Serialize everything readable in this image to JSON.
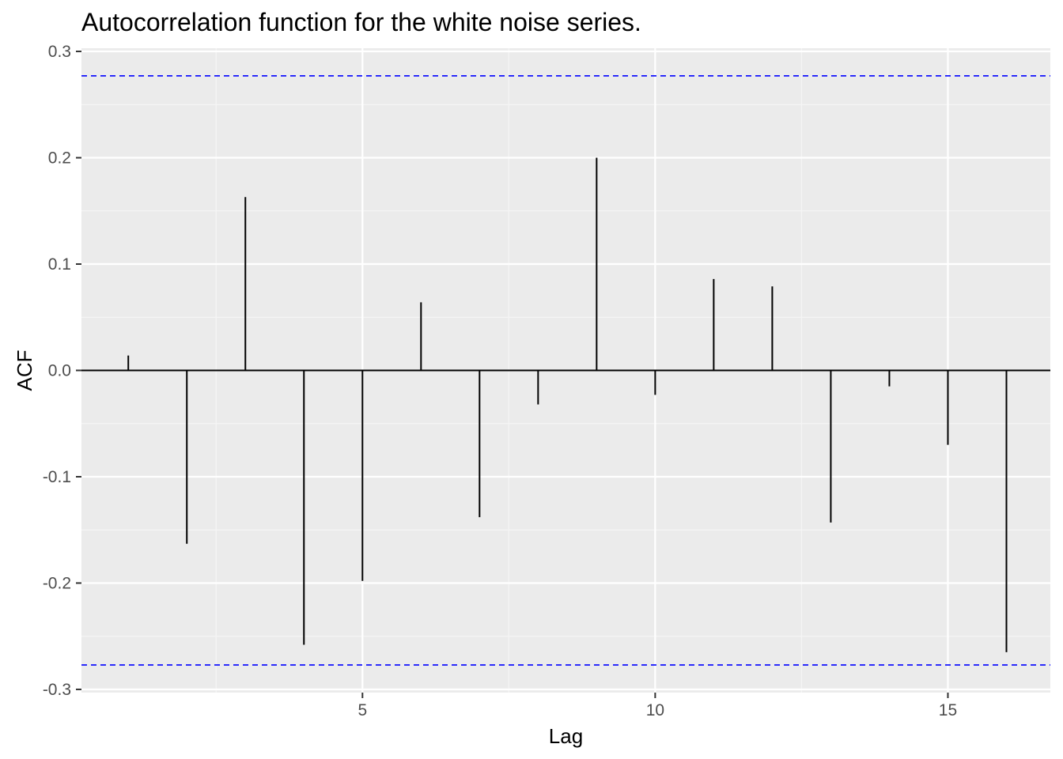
{
  "chart_data": {
    "type": "bar",
    "title": "Autocorrelation function for the white noise series.",
    "xlabel": "Lag",
    "ylabel": "ACF",
    "x": [
      1,
      2,
      3,
      4,
      5,
      6,
      7,
      8,
      9,
      10,
      11,
      12,
      13,
      14,
      15,
      16
    ],
    "values": [
      0.014,
      -0.163,
      0.163,
      -0.258,
      -0.198,
      0.064,
      -0.138,
      -0.032,
      0.2,
      -0.023,
      0.086,
      0.079,
      -0.143,
      -0.015,
      -0.07,
      -0.265
    ],
    "confidence_bounds": [
      0.277,
      -0.277
    ],
    "xlim": [
      0.2,
      16.75
    ],
    "ylim": [
      -0.303,
      0.303
    ],
    "x_ticks": [
      5,
      10,
      15
    ],
    "x_tick_labels": [
      "5",
      "10",
      "15"
    ],
    "y_ticks": [
      -0.3,
      -0.2,
      -0.1,
      0.0,
      0.1,
      0.2,
      0.3
    ],
    "y_tick_labels": [
      "-0.3",
      "-0.2",
      "-0.1",
      "0.0",
      "0.1",
      "0.2",
      "0.3"
    ],
    "grid": true,
    "legend": "none",
    "colors": {
      "panel_background": "#ebebeb",
      "grid_major": "#ffffff",
      "grid_minor": "#f5f5f5",
      "stems": "#000000",
      "zero_line": "#000000",
      "confidence_lines": "#0000ff"
    }
  }
}
